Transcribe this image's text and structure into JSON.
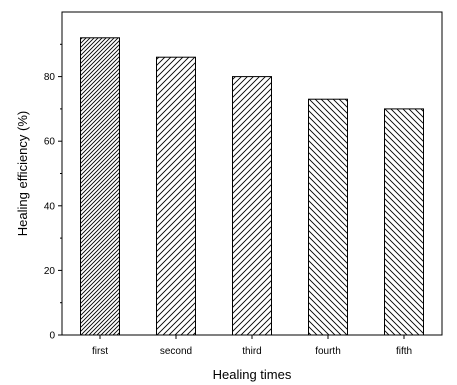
{
  "chart_data": {
    "type": "bar",
    "categories": [
      "first",
      "second",
      "third",
      "fourth",
      "fifth"
    ],
    "values": [
      92,
      86,
      80,
      73,
      70
    ],
    "title": "",
    "xlabel": "Healing times",
    "ylabel": "Healing efficiency (%)",
    "ylim": [
      0,
      100
    ],
    "yticks": [
      0,
      20,
      40,
      60,
      80
    ],
    "grid": false,
    "legend": "none",
    "bar_fill": "hatched",
    "bar_color": "#000000",
    "hatch_styles": [
      "dense-forward-diagonal",
      "forward-diagonal",
      "forward-diagonal",
      "back-diagonal",
      "back-diagonal"
    ]
  }
}
